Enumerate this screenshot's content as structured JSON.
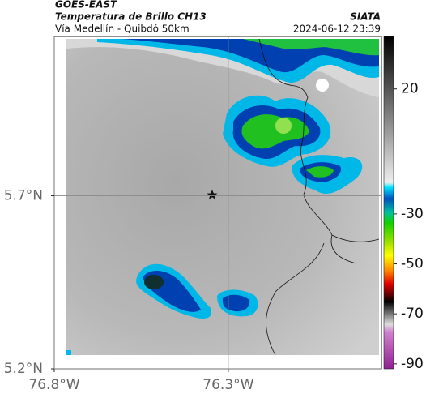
{
  "header": {
    "source": "GOES-EAST",
    "title": "Temperatura de Brillo CH13",
    "brand": "SIATA",
    "subtitle": "Vía Medellín - Quibdó 50km",
    "timestamp": "2024-06-12 23:39"
  },
  "map": {
    "xlim": [
      -76.8,
      -75.86
    ],
    "ylim": [
      5.2,
      6.16
    ],
    "xticks": [
      {
        "value": -76.8,
        "label": "76.8°W"
      },
      {
        "value": -76.3,
        "label": "76.3°W"
      }
    ],
    "yticks": [
      {
        "value": 5.7,
        "label": "5.7°N"
      },
      {
        "value": 5.2,
        "label": "5.2°N"
      }
    ],
    "grid": true
  },
  "colorbar": {
    "clim": [
      -92,
      41
    ],
    "ticks": [
      20,
      -30,
      -50,
      -70,
      -90
    ]
  }
}
